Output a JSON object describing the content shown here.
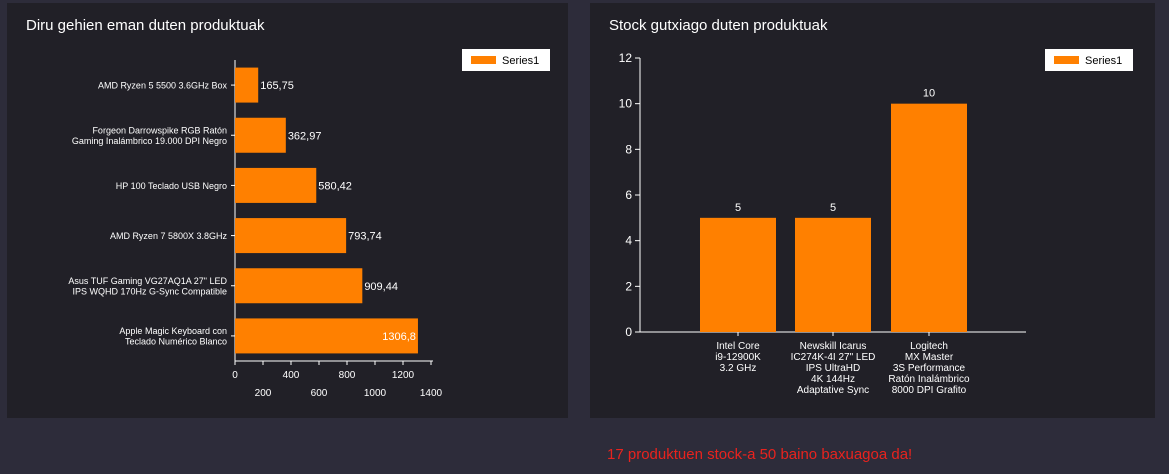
{
  "colors": {
    "background": "#2d2c3a",
    "panel": "#212027",
    "bar": "#ff8000",
    "axis": "#ffffff",
    "text": "#ffffff",
    "warning": "#e8231e"
  },
  "chart_data": [
    {
      "type": "bar",
      "orientation": "horizontal",
      "title": "Diru gehien eman duten produktuak",
      "categories": [
        [
          "AMD Ryzen 5 5500 3.6GHz Box"
        ],
        [
          "Forgeon Darrowspike RGB Ratón",
          "Gaming Inalámbrico 19.000 DPI Negro"
        ],
        [
          "HP 100 Teclado USB Negro"
        ],
        [
          "AMD Ryzen 7 5800X 3.8GHz"
        ],
        [
          "Asus TUF Gaming VG27AQ1A 27\" LED",
          "IPS WQHD 170Hz G-Sync Compatible"
        ],
        [
          "Apple Magic Keyboard con",
          "Teclado Numérico Blanco"
        ]
      ],
      "values": [
        165.75,
        362.97,
        580.42,
        793.74,
        909.44,
        1306.8
      ],
      "value_labels": [
        "165,75",
        "362,97",
        "580,42",
        "793,74",
        "909,44",
        "1306,8"
      ],
      "series": [
        {
          "name": "Series1"
        }
      ],
      "xlim": [
        0,
        1400
      ],
      "xticks_row1": [
        "0",
        "400",
        "800",
        "1200"
      ],
      "xticks_row2": [
        "200",
        "600",
        "1000",
        "1400"
      ],
      "grid": false,
      "legend": "top-right"
    },
    {
      "type": "bar",
      "orientation": "vertical",
      "title": "Stock gutxiago duten produktuak",
      "categories": [
        [
          "Intel Core",
          "i9-12900K",
          "3.2 GHz"
        ],
        [
          "Newskill Icarus",
          "IC274K-4I 27\" LED",
          "IPS UltraHD",
          "4K 144Hz",
          "Adaptative Sync"
        ],
        [
          "Logitech",
          "MX Master",
          "3S Performance",
          "Ratón Inalámbrico",
          "8000 DPI Grafito"
        ]
      ],
      "values": [
        5,
        5,
        10
      ],
      "value_labels": [
        "5",
        "5",
        "10"
      ],
      "series": [
        {
          "name": "Series1"
        }
      ],
      "ylim": [
        0,
        12
      ],
      "yticks": [
        "0",
        "2",
        "4",
        "6",
        "8",
        "10",
        "12"
      ],
      "grid": false,
      "legend": "top-right"
    }
  ],
  "warning_text": "17 produktuen stock-a 50 baino baxuagoa da!"
}
